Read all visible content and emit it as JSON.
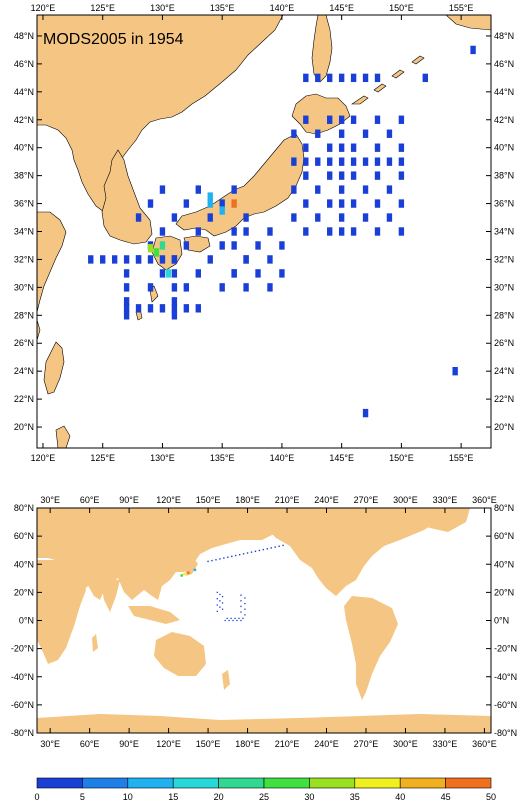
{
  "top_map": {
    "title": "MODS2005 in 1954",
    "lon_ticks": [
      "120°E",
      "125°E",
      "130°E",
      "135°E",
      "140°E",
      "145°E",
      "150°E",
      "155°E"
    ],
    "lat_ticks": [
      "48°N",
      "46°N",
      "44°N",
      "42°N",
      "40°N",
      "38°N",
      "36°N",
      "34°N",
      "32°N",
      "30°N",
      "28°N",
      "26°N",
      "24°N",
      "22°N",
      "20°N"
    ],
    "lon_range": [
      119.5,
      157.5
    ],
    "lat_range": [
      18.5,
      49.5
    ]
  },
  "bottom_map": {
    "lon_ticks": [
      "30°E",
      "60°E",
      "90°E",
      "120°E",
      "150°E",
      "180°E",
      "210°E",
      "240°E",
      "270°E",
      "300°E",
      "330°E",
      "360°E"
    ],
    "lat_ticks": [
      "80°N",
      "60°N",
      "40°N",
      "20°N",
      "0°N",
      "-20°N",
      "-40°N",
      "-60°N",
      "-80°N"
    ],
    "lon_range": [
      20,
      365
    ],
    "lat_range": [
      -80,
      80
    ]
  },
  "colorbar": {
    "labels": [
      "0",
      "5",
      "10",
      "15",
      "20",
      "25",
      "30",
      "35",
      "40",
      "45",
      "50"
    ],
    "colors": [
      "#1a3fd6",
      "#1f7fe8",
      "#20b2f0",
      "#28d8d8",
      "#30d890",
      "#40e040",
      "#98e020",
      "#f0f020",
      "#f0b020",
      "#f07020"
    ]
  },
  "colors": {
    "land": "#f5c583",
    "ocean": "#ffffff",
    "obs_low": "#1a3fd6"
  }
}
